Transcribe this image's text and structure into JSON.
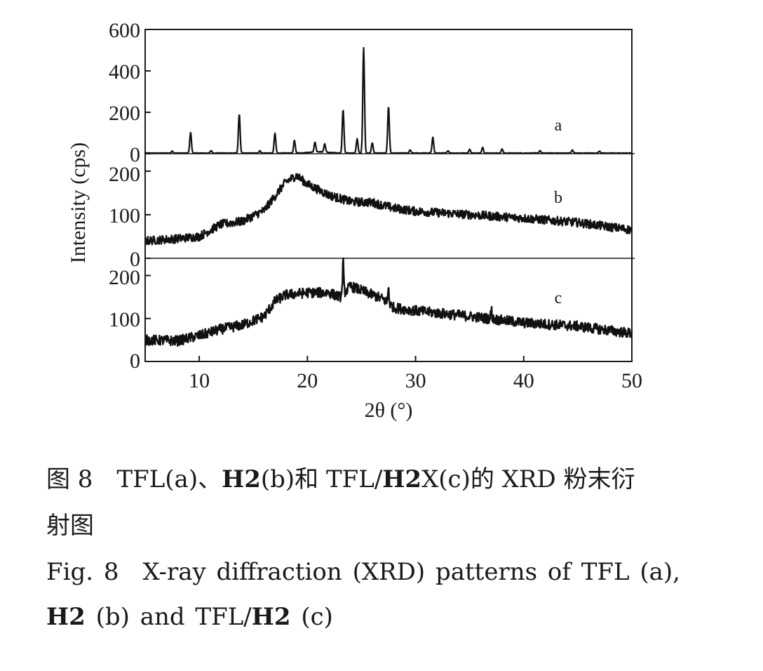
{
  "chart_data": {
    "type": "line",
    "xlabel": "2θ (°)",
    "ylabel": "Intensity (cps)",
    "xlim": [
      5,
      50
    ],
    "x_ticks": [
      "10",
      "20",
      "30",
      "40",
      "50"
    ],
    "panels": [
      {
        "name": "a",
        "ylim": [
          0,
          600
        ],
        "y_ticks": [
          "0",
          "200",
          "400",
          "600"
        ],
        "baseline": 3,
        "peaks": [
          {
            "x": 7.5,
            "y": 10
          },
          {
            "x": 9.2,
            "y": 100
          },
          {
            "x": 11.1,
            "y": 12
          },
          {
            "x": 13.7,
            "y": 190
          },
          {
            "x": 15.6,
            "y": 12
          },
          {
            "x": 17.0,
            "y": 95
          },
          {
            "x": 18.8,
            "y": 60
          },
          {
            "x": 20.7,
            "y": 48
          },
          {
            "x": 21.6,
            "y": 40
          },
          {
            "x": 23.3,
            "y": 210
          },
          {
            "x": 24.6,
            "y": 70
          },
          {
            "x": 25.2,
            "y": 510
          },
          {
            "x": 26.0,
            "y": 50
          },
          {
            "x": 27.5,
            "y": 225
          },
          {
            "x": 29.5,
            "y": 15
          },
          {
            "x": 31.6,
            "y": 75
          },
          {
            "x": 33.0,
            "y": 12
          },
          {
            "x": 35.0,
            "y": 18
          },
          {
            "x": 36.2,
            "y": 28
          },
          {
            "x": 38.0,
            "y": 20
          },
          {
            "x": 41.5,
            "y": 12
          },
          {
            "x": 44.5,
            "y": 15
          },
          {
            "x": 47.0,
            "y": 10
          }
        ]
      },
      {
        "name": "b",
        "ylim": [
          0,
          240
        ],
        "y_ticks": [
          "0",
          "100",
          "200"
        ],
        "profile": [
          [
            5,
            40
          ],
          [
            8,
            45
          ],
          [
            10,
            50
          ],
          [
            12,
            78
          ],
          [
            14,
            85
          ],
          [
            16,
            110
          ],
          [
            18,
            175
          ],
          [
            19,
            190
          ],
          [
            20,
            170
          ],
          [
            22,
            145
          ],
          [
            24,
            130
          ],
          [
            26,
            128
          ],
          [
            28,
            115
          ],
          [
            30,
            108
          ],
          [
            35,
            100
          ],
          [
            40,
            92
          ],
          [
            45,
            82
          ],
          [
            50,
            65
          ]
        ],
        "noise": 10
      },
      {
        "name": "c",
        "ylim": [
          0,
          240
        ],
        "y_ticks": [
          "0",
          "100",
          "200"
        ],
        "profile": [
          [
            5,
            50
          ],
          [
            8,
            48
          ],
          [
            10,
            60
          ],
          [
            12,
            75
          ],
          [
            14,
            85
          ],
          [
            16,
            105
          ],
          [
            17,
            140
          ],
          [
            18,
            155
          ],
          [
            20,
            160
          ],
          [
            22,
            160
          ],
          [
            23,
            150
          ],
          [
            24,
            175
          ],
          [
            25,
            165
          ],
          [
            27,
            145
          ],
          [
            28,
            125
          ],
          [
            30,
            118
          ],
          [
            35,
            105
          ],
          [
            40,
            90
          ],
          [
            45,
            82
          ],
          [
            50,
            65
          ]
        ],
        "noise": 12,
        "spikes": [
          {
            "x": 23.3,
            "y": 235
          },
          {
            "x": 27.5,
            "y": 175
          },
          {
            "x": 37.0,
            "y": 125
          }
        ]
      }
    ]
  },
  "caption": {
    "zh_line1": {
      "prefix": "图 8　TFL(a)、",
      "bold1": "H2",
      "mid": "(b)和 TFL/",
      "bold2": "H2",
      "suffix": "X(c)的 XRD 粉末衍"
    },
    "zh_line2": "射图",
    "en_line1": "Fig. 8　X-ray diffraction (XRD) patterns of TFL (a),",
    "en_line2": {
      "bold1": "H2",
      "mid": " (b) and TFL/",
      "bold2": "H2",
      "suffix": " (c)"
    }
  }
}
